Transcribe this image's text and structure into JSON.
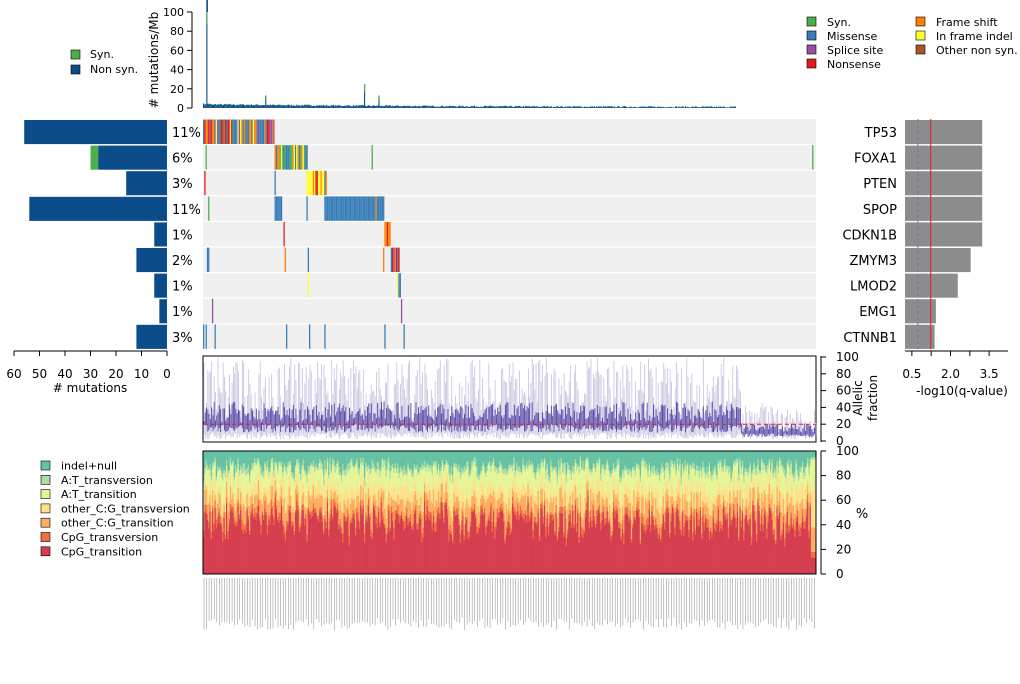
{
  "colors": {
    "syn": "#4daf4a",
    "missense": "#377eb8",
    "splice_site": "#984ea3",
    "nonsense": "#e41a1c",
    "frame_shift": "#ff7f00",
    "in_frame_indel": "#ffff33",
    "other_non_syn": "#a65628",
    "non_syn_bar": "#0c4c8a",
    "qvalue_bar": "#8c8c8c",
    "grid_bg": "#f0f0f0",
    "allelic_light": "#c6c0e0",
    "allelic_dark": "#5a4da8",
    "median_line": "#e41a1c",
    "cat_indel_null": "#66c2a5",
    "cat_AT_transversion": "#abdda4",
    "cat_AT_transition": "#e6f598",
    "cat_other_CG_transversion": "#fee08b",
    "cat_other_CG_transition": "#fdae61",
    "cat_CpG_transversion": "#f46d43",
    "cat_CpG_transition": "#d53e4f"
  },
  "chart_data": [
    {
      "type": "bar",
      "id": "mutation_rate",
      "ylabel": "# mutations/Mb",
      "ytick_labels": [
        "0",
        "20",
        "40",
        "60",
        "80",
        "100"
      ],
      "ylim": [
        0,
        100
      ],
      "legend": [
        "Syn.",
        "Non syn."
      ]
    },
    {
      "type": "bar",
      "id": "gene_mutation_counts",
      "orientation": "horizontal",
      "xlabel": "# mutations",
      "xtick_labels": [
        "60",
        "50",
        "40",
        "30",
        "20",
        "10",
        "0"
      ],
      "xlim": [
        60,
        0
      ],
      "categories": [
        "TP53",
        "FOXA1",
        "PTEN",
        "SPOP",
        "CDKN1B",
        "ZMYM3",
        "LMOD2",
        "EMG1",
        "CTNNB1"
      ],
      "series": [
        {
          "name": "Non syn.",
          "values": [
            56,
            27,
            16,
            54,
            5,
            12,
            5,
            3,
            12
          ]
        },
        {
          "name": "Syn.",
          "values": [
            0,
            3,
            0,
            0,
            0,
            0,
            0,
            0,
            0
          ]
        }
      ],
      "percent_labels": [
        "11%",
        "6%",
        "3%",
        "11%",
        "1%",
        "2%",
        "1%",
        "1%",
        "3%"
      ]
    },
    {
      "type": "heatmap",
      "id": "mutation_matrix",
      "rows": [
        "TP53",
        "FOXA1",
        "PTEN",
        "SPOP",
        "CDKN1B",
        "ZMYM3",
        "LMOD2",
        "EMG1",
        "CTNNB1"
      ],
      "legend": [
        "Syn.",
        "Missense",
        "Splice site",
        "Nonsense",
        "Frame shift",
        "In frame indel",
        "Other non syn."
      ]
    },
    {
      "type": "bar",
      "id": "qvalues",
      "orientation": "horizontal",
      "xlabel": "-log10(q-value)",
      "xtick_labels": [
        "0.5",
        "2.0",
        "3.5"
      ],
      "xlim": [
        0,
        4
      ],
      "categories": [
        "TP53",
        "FOXA1",
        "PTEN",
        "SPOP",
        "CDKN1B",
        "ZMYM3",
        "LMOD2",
        "EMG1",
        "CTNNB1"
      ],
      "values": [
        3.0,
        3.0,
        3.0,
        3.0,
        3.0,
        2.55,
        2.05,
        1.2,
        1.15
      ],
      "significance_line": 1.0,
      "threshold_line": 0.5
    },
    {
      "type": "line",
      "id": "allelic_fraction",
      "ylabel": "Allelic fraction",
      "ytick_labels": [
        "0",
        "20",
        "40",
        "60",
        "80",
        "100"
      ],
      "ylim": [
        0,
        100
      ],
      "median": 20
    },
    {
      "type": "bar",
      "id": "mutation_spectrum",
      "stacked": true,
      "ylabel": "%",
      "ytick_labels": [
        "0",
        "20",
        "40",
        "60",
        "80",
        "100"
      ],
      "ylim": [
        0,
        100
      ],
      "categories": [
        "indel+null",
        "A:T_transversion",
        "A:T_transition",
        "other_C:G_transversion",
        "other_C:G_transition",
        "CpG_transversion",
        "CpG_transition"
      ],
      "mean_fractions": [
        0.12,
        0.04,
        0.14,
        0.1,
        0.12,
        0.05,
        0.43
      ]
    }
  ]
}
